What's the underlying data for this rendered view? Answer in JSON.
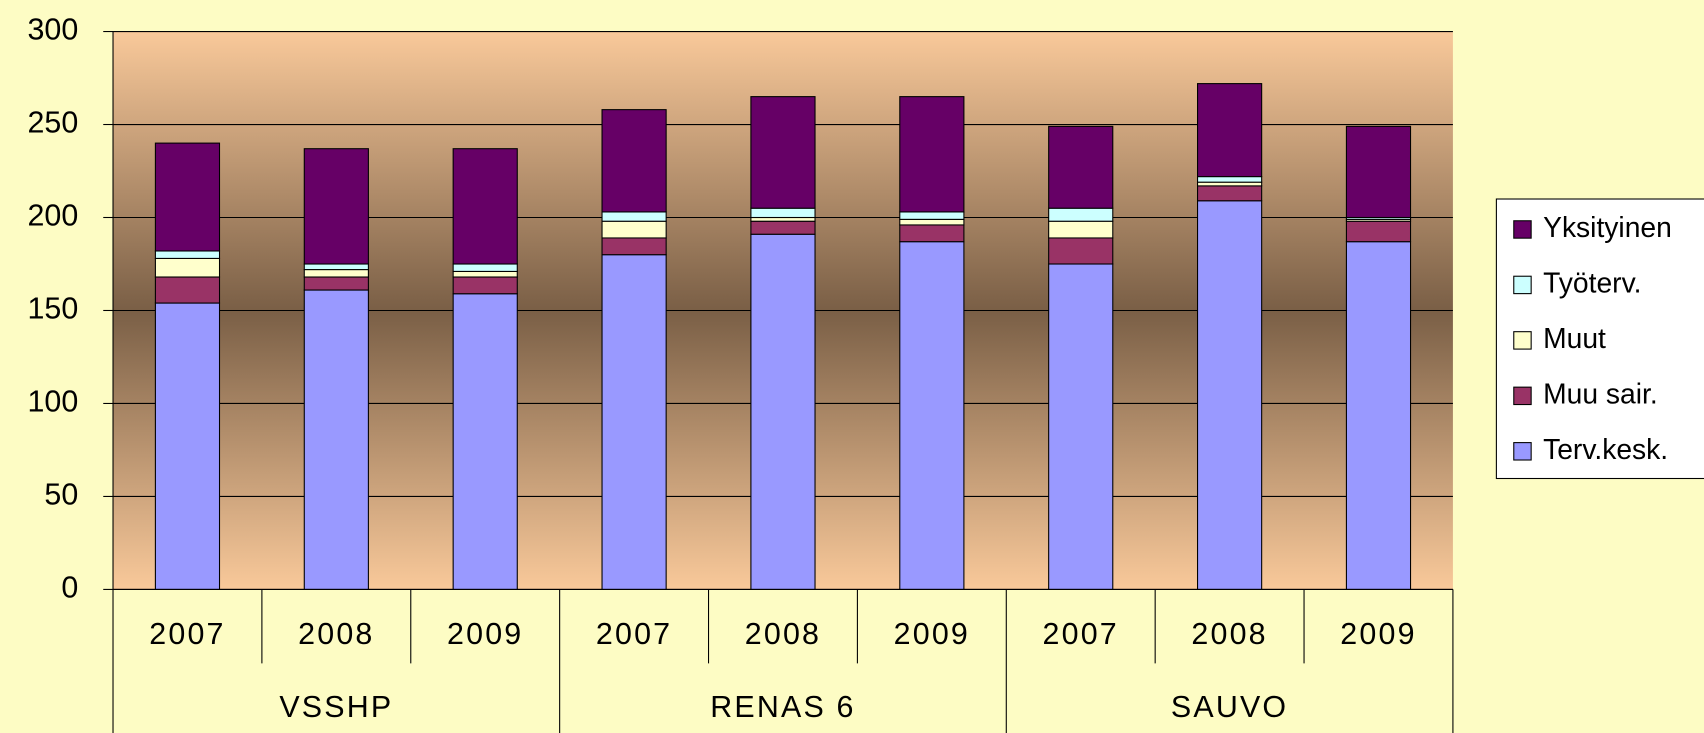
{
  "chart_data": {
    "type": "stacked_bar",
    "categories": [
      "2007",
      "2008",
      "2009",
      "2007",
      "2008",
      "2009",
      "2007",
      "2008",
      "2009"
    ],
    "groups": [
      "VSSHP",
      "RENAS 6",
      "SAUVO"
    ],
    "series": [
      {
        "name": "Terv.kesk.",
        "color": "#9999ff",
        "values": [
          154,
          161,
          159,
          180,
          191,
          187,
          175,
          209,
          187
        ]
      },
      {
        "name": "Muu sair.",
        "color": "#993366",
        "values": [
          14,
          7,
          9,
          9,
          7,
          9,
          14,
          8,
          11
        ]
      },
      {
        "name": "Muut",
        "color": "#ffffcc",
        "values": [
          10,
          4,
          3,
          9,
          2,
          3,
          9,
          2,
          1
        ]
      },
      {
        "name": "Työterv.",
        "color": "#ccffff",
        "values": [
          4,
          3,
          4,
          5,
          5,
          4,
          7,
          3,
          1
        ]
      },
      {
        "name": "Yksityinen",
        "color": "#660066",
        "values": [
          58,
          62,
          62,
          55,
          60,
          62,
          44,
          50,
          49
        ]
      }
    ],
    "ylim": [
      0,
      300
    ],
    "yticks": [
      0,
      50,
      100,
      150,
      200,
      250,
      300
    ],
    "grid": true,
    "legend": "right"
  }
}
